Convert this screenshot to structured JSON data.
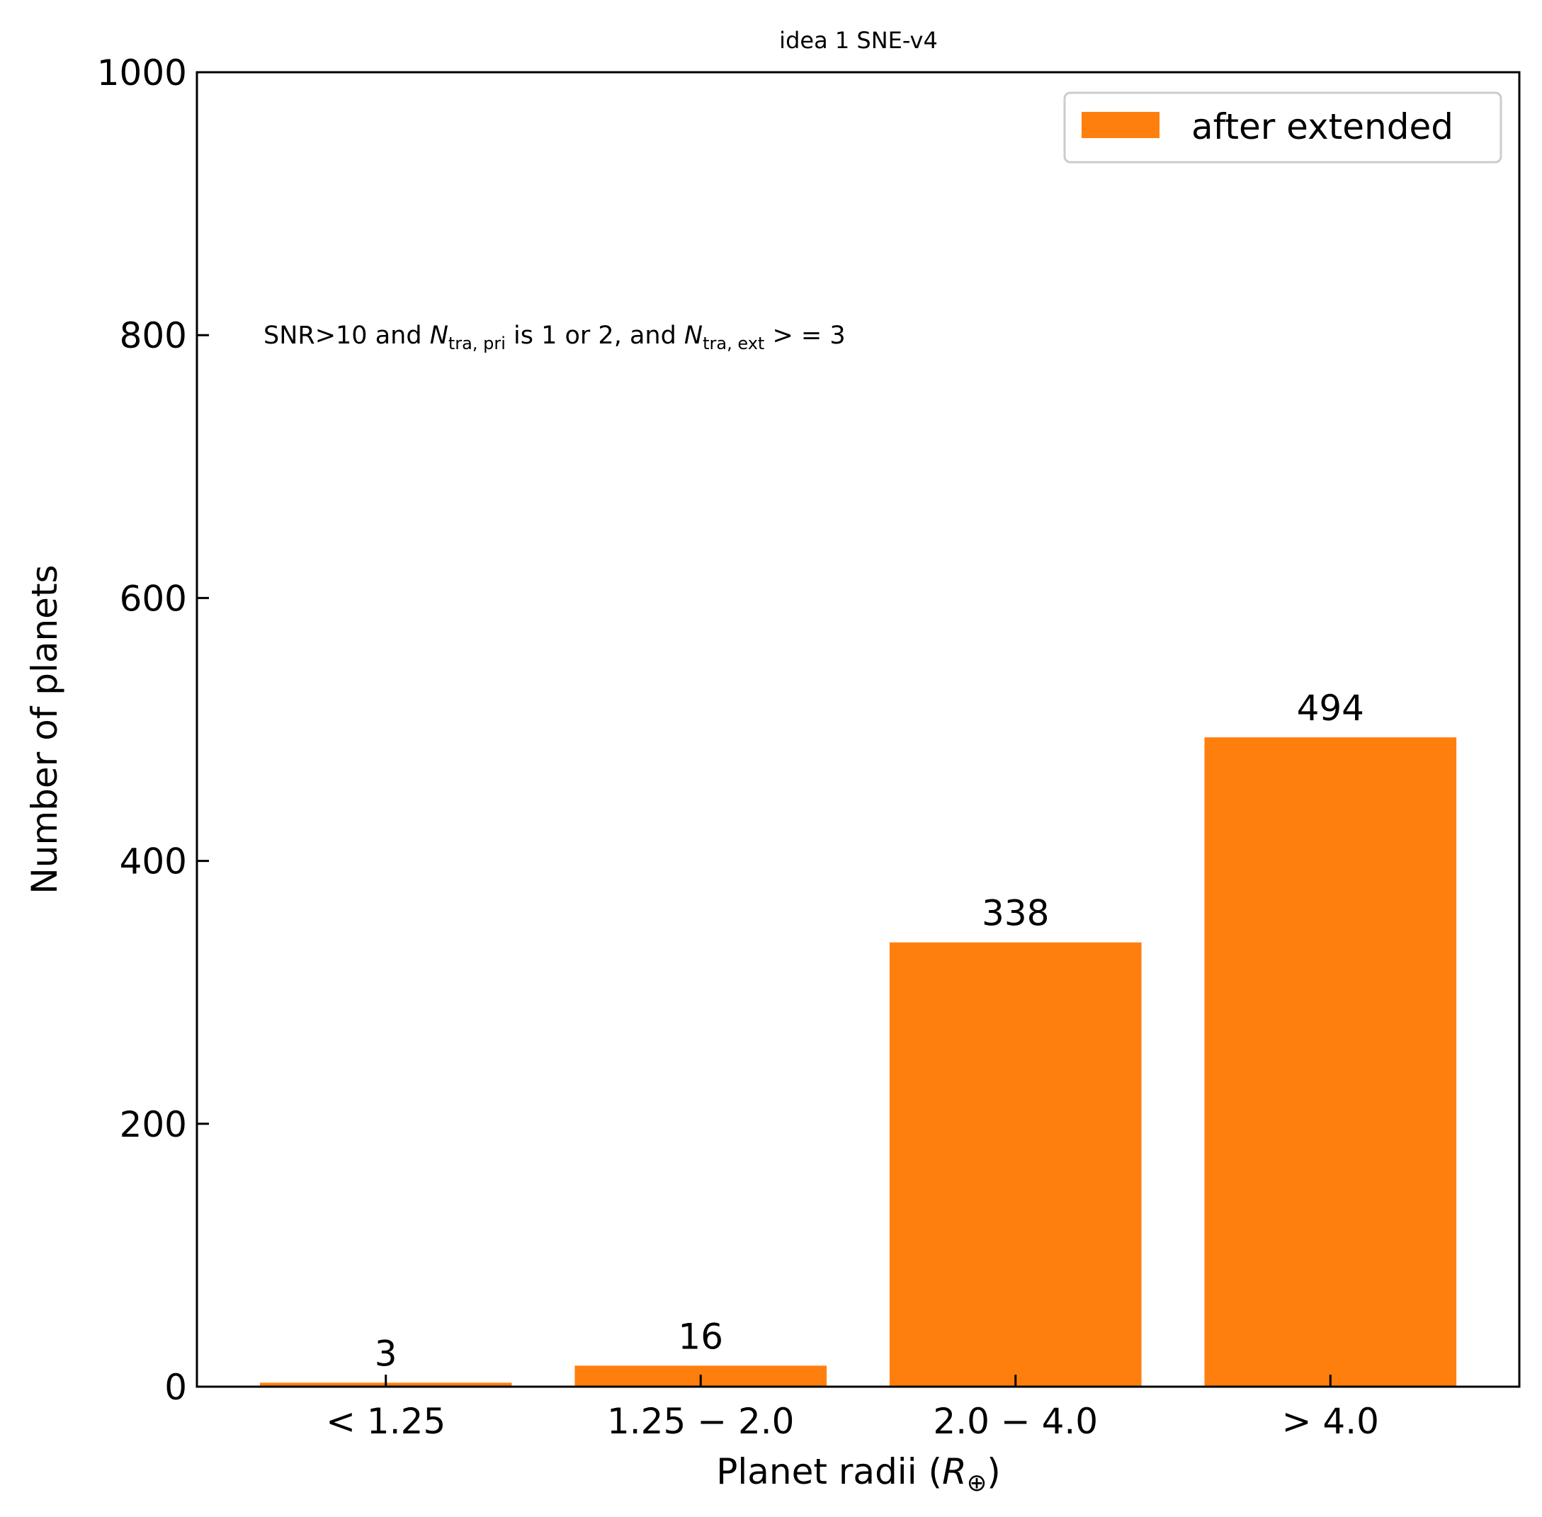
{
  "chart_data": {
    "type": "bar",
    "title": "idea 1 SNE-v4",
    "categories": [
      "< 1.25",
      "1.25 − 2.0",
      "2.0 − 4.0",
      "> 4.0"
    ],
    "series": [
      {
        "name": "after extended",
        "values": [
          3,
          16,
          338,
          494
        ],
        "color": "#ff7f0e"
      }
    ],
    "bar_labels": [
      "3",
      "16",
      "338",
      "494"
    ],
    "xlabel_main": "Planet radii (",
    "xlabel_symbol": "R",
    "xlabel_subscript": "⊕",
    "xlabel_close": ")",
    "ylabel": "Number of planets",
    "ylim": [
      0,
      1000
    ],
    "yticks": [
      0,
      200,
      400,
      600,
      800,
      1000
    ],
    "ytick_labels": [
      "0",
      "200",
      "400",
      "600",
      "800",
      "1000"
    ],
    "annotation": {
      "value": 800,
      "part1": "SNR>10 and ",
      "n1": "N",
      "sub1": "tra, pri",
      "part2": " is 1 or 2, and ",
      "n2": "N",
      "sub2": "tra, ext",
      "part3": " > = 3"
    },
    "legend_position": "upper right",
    "grid": false,
    "tick_direction": "in"
  }
}
